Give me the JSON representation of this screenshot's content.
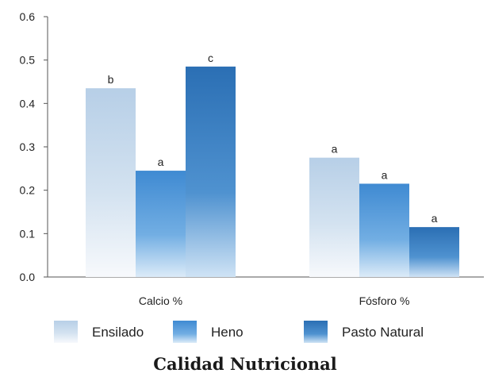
{
  "chart_data": {
    "type": "bar",
    "title": "Calidad Nutricional",
    "categories": [
      "Calcio %",
      "Fósforo %"
    ],
    "series": [
      {
        "name": "Ensilado",
        "values": [
          0.435,
          0.275
        ],
        "labels": [
          "b",
          "a"
        ],
        "color": "#b9d1e8"
      },
      {
        "name": "Heno",
        "values": [
          0.245,
          0.215
        ],
        "labels": [
          "a",
          "a"
        ],
        "color": "#5b9bd5"
      },
      {
        "name": "Pasto Natural",
        "values": [
          0.485,
          0.115
        ],
        "labels": [
          "c",
          "a"
        ],
        "color": "#2e75b6"
      }
    ],
    "ylim": [
      0,
      0.6
    ],
    "yticks": [
      "0.0",
      "0.1",
      "0.2",
      "0.3",
      "0.4",
      "0.5",
      "0.6"
    ],
    "legend_position": "bottom",
    "grid": false
  }
}
